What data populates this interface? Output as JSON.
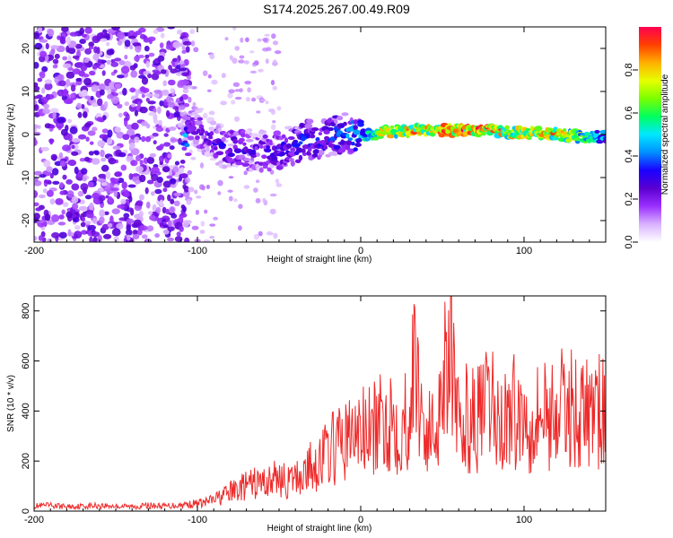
{
  "title": "S174.2025.267.00.49.R09",
  "chart_data": [
    {
      "type": "heatmap",
      "title": "S174.2025.267.00.49.R09",
      "xlabel": "Height of straight line (km)",
      "ylabel": "Frequency (Hz)",
      "xlim": [
        -200,
        150
      ],
      "ylim": [
        -25,
        25
      ],
      "xticks": [
        -200,
        -100,
        0,
        100
      ],
      "yticks": [
        -20,
        -10,
        0,
        10,
        20
      ],
      "colorbar": {
        "label": "Normalized spectral amplitude",
        "range": [
          0.0,
          1.0
        ],
        "ticks": [
          0.0,
          0.2,
          0.4,
          0.6,
          0.8
        ],
        "colors": [
          "#ffffff",
          "#d9b3ff",
          "#9b30ff",
          "#5a00d0",
          "#1a00ff",
          "#0090ff",
          "#00e8ff",
          "#00ff60",
          "#7aff00",
          "#e8ff00",
          "#ffb000",
          "#ff4000",
          "#ff0050"
        ]
      },
      "ridge": [
        {
          "x": -105,
          "y": 2.5,
          "amp": 0.3
        },
        {
          "x": -95,
          "y": 0,
          "amp": 0.3
        },
        {
          "x": -85,
          "y": -3,
          "amp": 0.35
        },
        {
          "x": -75,
          "y": -3.5,
          "amp": 0.35
        },
        {
          "x": -65,
          "y": -4,
          "amp": 0.3
        },
        {
          "x": -50,
          "y": -3.5,
          "amp": 0.35
        },
        {
          "x": -35,
          "y": -1.5,
          "amp": 0.4
        },
        {
          "x": -20,
          "y": -0.5,
          "amp": 0.4
        },
        {
          "x": -10,
          "y": 0.5,
          "amp": 0.45
        },
        {
          "x": 0,
          "y": -0.5,
          "amp": 0.55
        },
        {
          "x": 15,
          "y": 0.5,
          "amp": 0.85
        },
        {
          "x": 30,
          "y": 1,
          "amp": 0.9
        },
        {
          "x": 45,
          "y": 1,
          "amp": 0.92
        },
        {
          "x": 60,
          "y": 1,
          "amp": 0.95
        },
        {
          "x": 75,
          "y": 1,
          "amp": 0.95
        },
        {
          "x": 90,
          "y": 0.5,
          "amp": 0.9
        },
        {
          "x": 105,
          "y": 0.5,
          "amp": 0.85
        },
        {
          "x": 120,
          "y": 0,
          "amp": 0.9
        },
        {
          "x": 135,
          "y": -0.5,
          "amp": 0.7
        },
        {
          "x": 150,
          "y": -0.5,
          "amp": 0.5
        }
      ]
    },
    {
      "type": "line",
      "xlabel": "Height of straight line (km)",
      "ylabel": "SNR (10 * v/v)",
      "xlim": [
        -200,
        150
      ],
      "ylim": [
        0,
        860
      ],
      "xticks": [
        -200,
        -100,
        0,
        100
      ],
      "yticks": [
        0,
        200,
        400,
        600,
        800
      ],
      "series": [
        {
          "name": "SNR",
          "color": "#ee2a2a",
          "x": [
            -200,
            -190,
            -180,
            -170,
            -160,
            -150,
            -140,
            -130,
            -120,
            -110,
            -100,
            -95,
            -90,
            -85,
            -80,
            -75,
            -70,
            -65,
            -60,
            -55,
            -50,
            -45,
            -40,
            -35,
            -30,
            -25,
            -20,
            -15,
            -10,
            -5,
            0,
            5,
            10,
            15,
            20,
            25,
            30,
            33,
            36,
            40,
            45,
            50,
            53,
            55,
            58,
            62,
            65,
            70,
            75,
            80,
            85,
            90,
            95,
            100,
            105,
            110,
            115,
            120,
            125,
            130,
            135,
            140,
            145,
            150
          ],
          "y": [
            20,
            22,
            18,
            20,
            22,
            20,
            18,
            22,
            20,
            25,
            30,
            35,
            45,
            60,
            75,
            90,
            100,
            110,
            115,
            120,
            140,
            110,
            130,
            150,
            180,
            200,
            240,
            260,
            280,
            300,
            320,
            310,
            330,
            360,
            380,
            320,
            420,
            580,
            470,
            300,
            320,
            500,
            700,
            820,
            350,
            320,
            380,
            360,
            390,
            420,
            340,
            380,
            400,
            360,
            380,
            400,
            390,
            400,
            410,
            420,
            380,
            400,
            390,
            400
          ]
        }
      ]
    }
  ]
}
